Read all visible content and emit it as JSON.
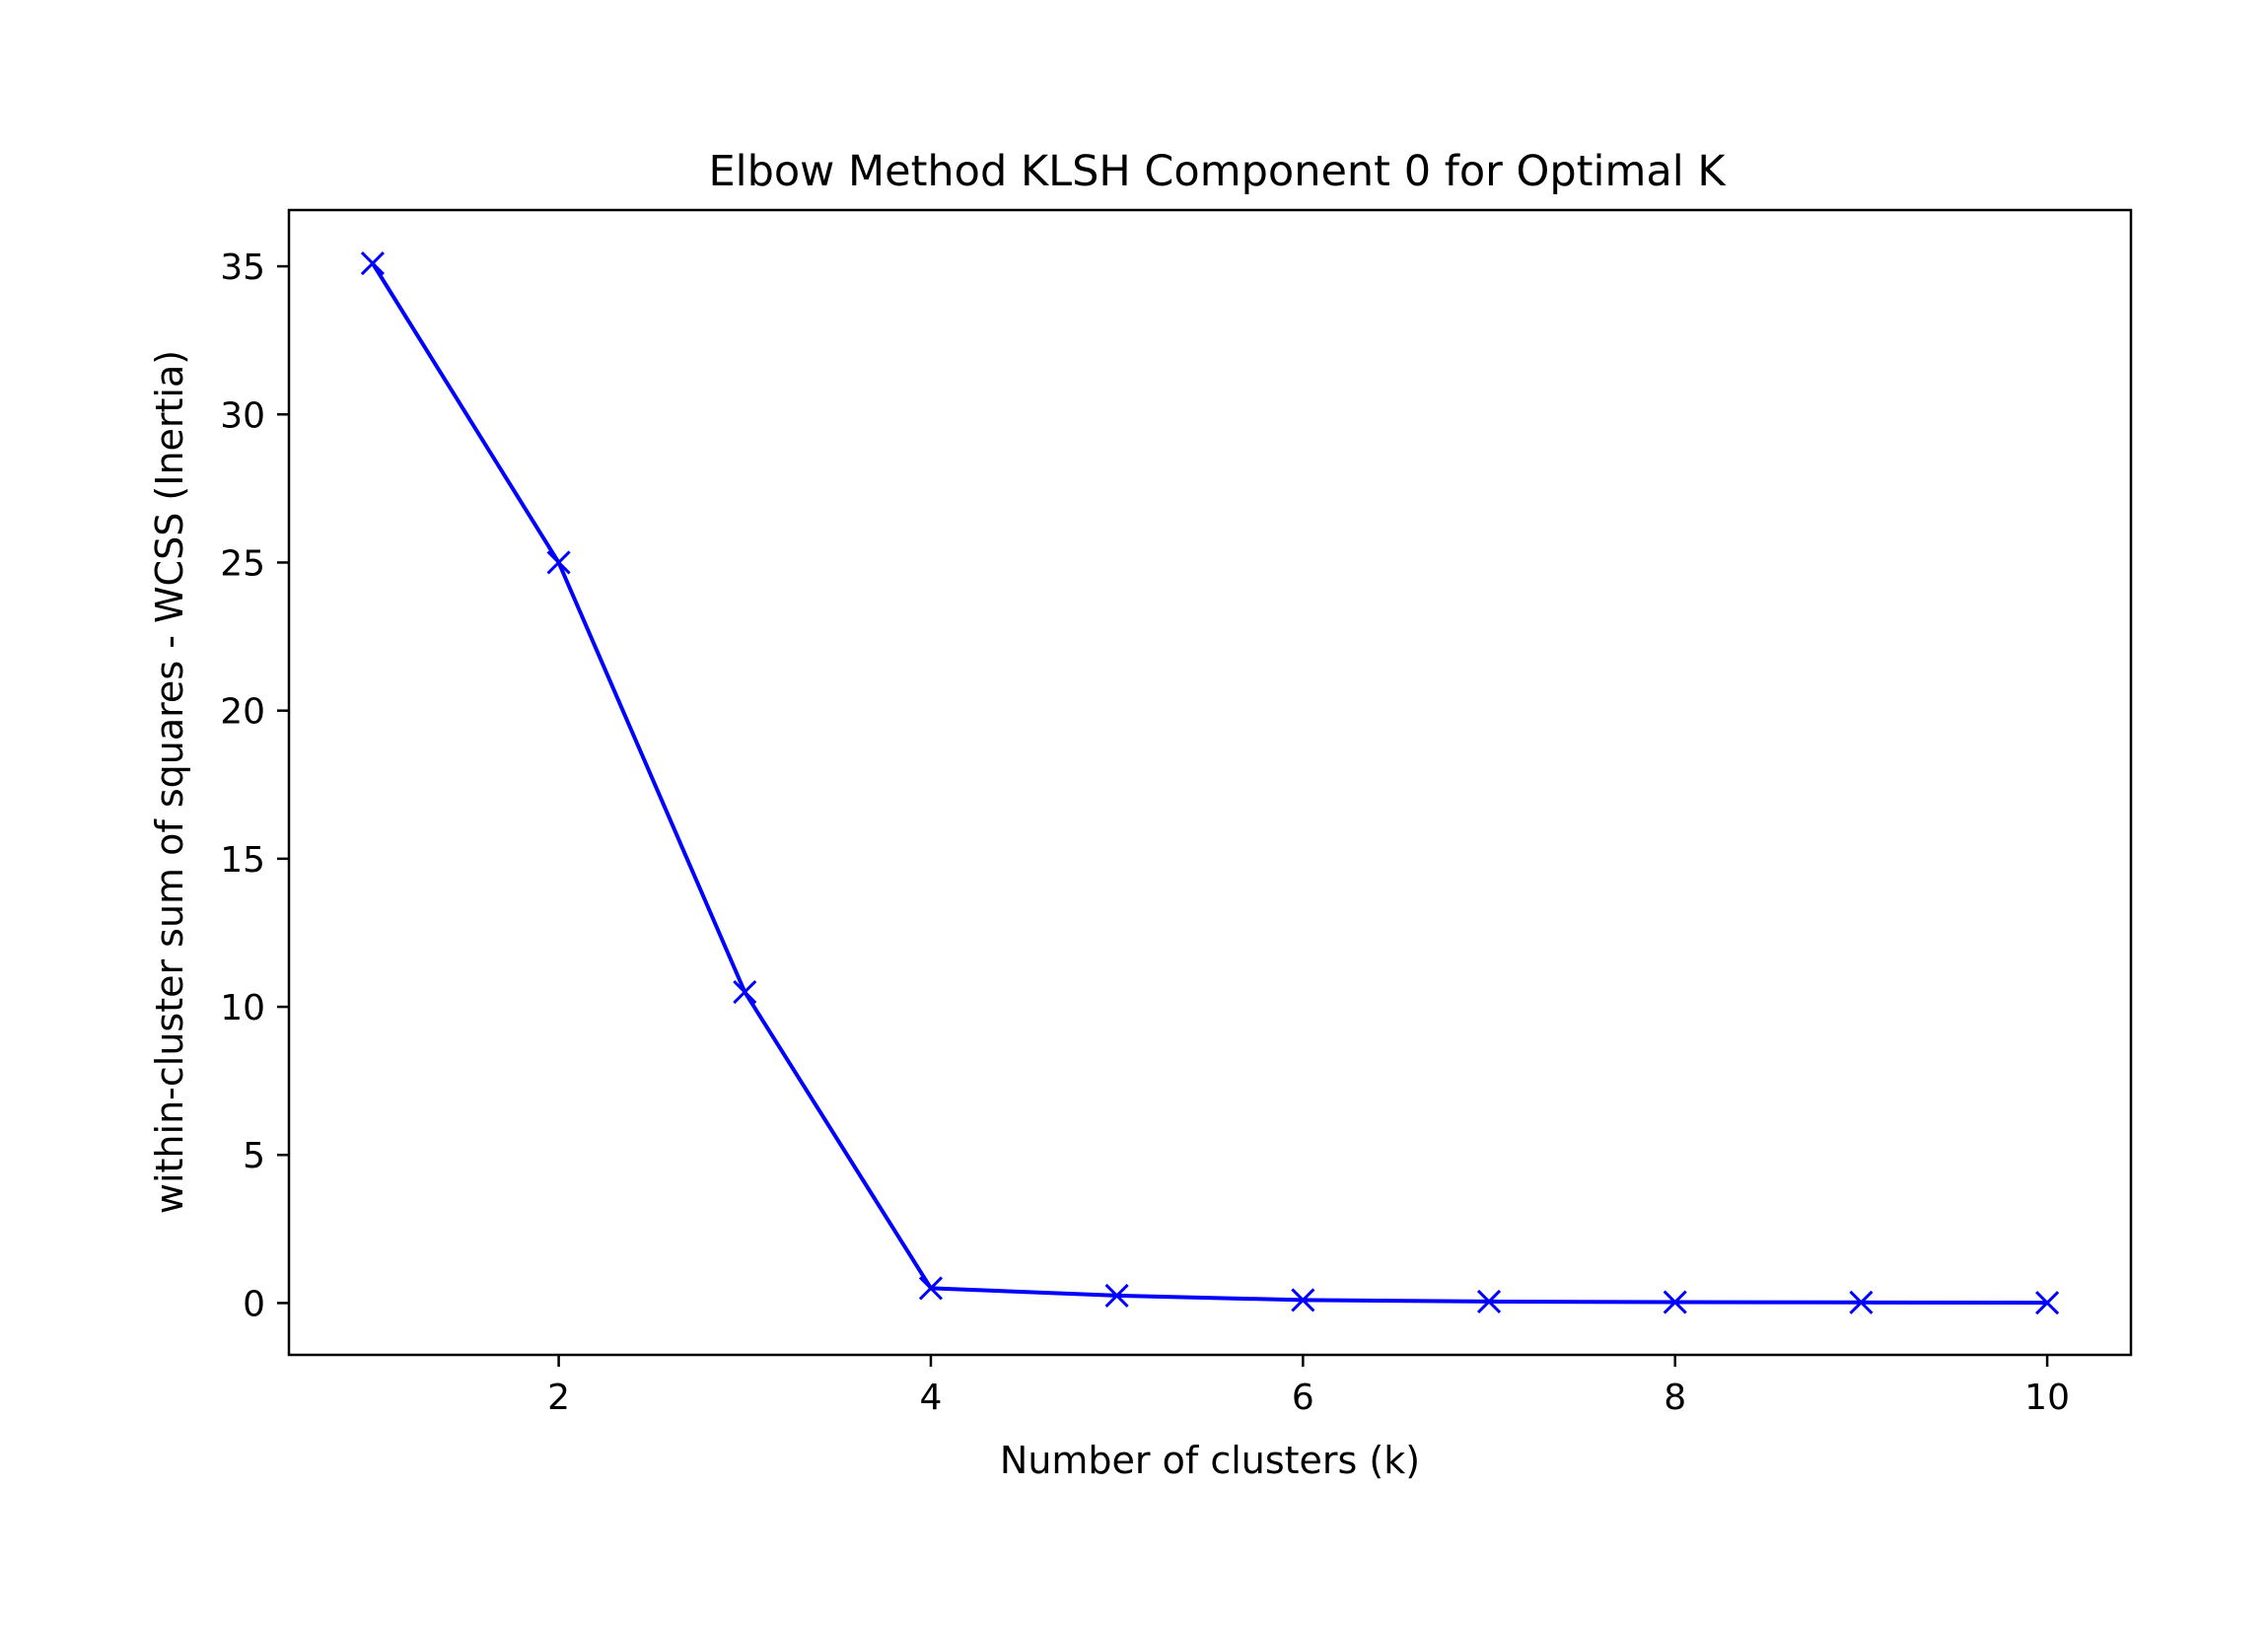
{
  "chart_data": {
    "type": "line",
    "title": "Elbow Method KLSH Component 0 for Optimal K",
    "xlabel": "Number of clusters (k)",
    "ylabel": "within-cluster sum of squares - WCSS (Inertia)",
    "xlim": [
      0.55,
      10.45
    ],
    "ylim": [
      -1.75,
      36.9
    ],
    "x_ticks": [
      2,
      4,
      6,
      8,
      10
    ],
    "x_tick_labels": [
      "2",
      "4",
      "6",
      "8",
      "10"
    ],
    "y_ticks": [
      0,
      5,
      10,
      15,
      20,
      25,
      30,
      35
    ],
    "y_tick_labels": [
      "0",
      "5",
      "10",
      "15",
      "20",
      "25",
      "30",
      "35"
    ],
    "grid": false,
    "legend": false,
    "series": [
      {
        "color": "#0000ff",
        "marker": "x",
        "x": [
          1,
          2,
          3,
          4,
          5,
          6,
          7,
          8,
          9,
          10
        ],
        "y": [
          35.1,
          25.0,
          10.5,
          0.5,
          0.25,
          0.1,
          0.05,
          0.03,
          0.02,
          0.01
        ]
      }
    ]
  }
}
